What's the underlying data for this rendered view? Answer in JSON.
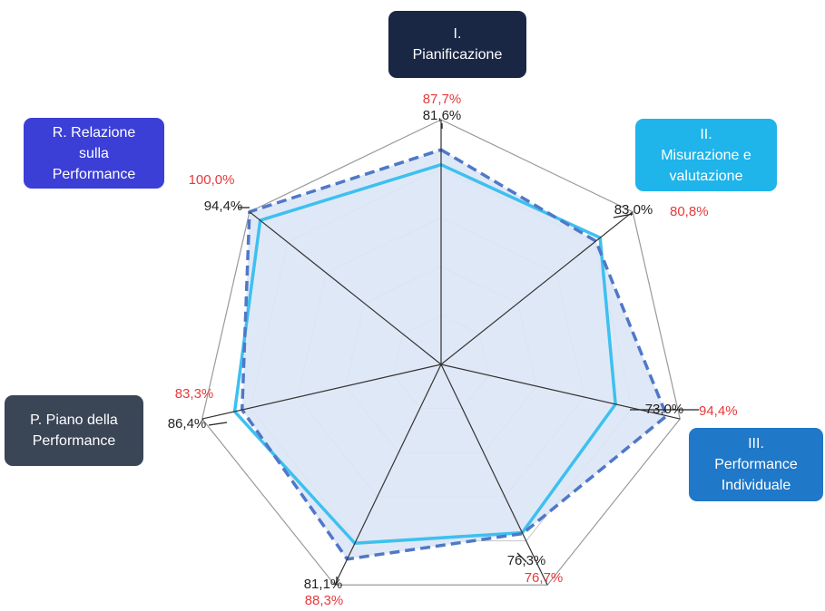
{
  "chart_data": {
    "type": "radar",
    "categories": [
      "I. Pianificazione",
      "II. Misurazione e valutazione",
      "III. Performance Individuale",
      "",
      "",
      "P. Piano della Performance",
      "R. Relazione sulla Performance"
    ],
    "series": [
      {
        "values": [
          81.6,
          83.0,
          73.0,
          76.3,
          81.1,
          86.4,
          94.4
        ],
        "labels": [
          "81,6%",
          "83,0%",
          "73,0%",
          "76,3%",
          "81,1%",
          "86,4%",
          "94,4%"
        ]
      },
      {
        "values": [
          87.7,
          80.8,
          94.4,
          76.7,
          88.3,
          83.3,
          100.0
        ],
        "labels": [
          "87,7%",
          "80,8%",
          "94,4%",
          "76,7%",
          "88,3%",
          "83,3%",
          "100,0%"
        ]
      }
    ],
    "rlim": [
      0,
      100
    ],
    "grid": true
  },
  "callouts": [
    {
      "id": "I",
      "lines": [
        "I.",
        "Pianificazione"
      ],
      "color": "#1a2744"
    },
    {
      "id": "II",
      "lines": [
        "II.",
        "Misurazione e",
        "valutazione"
      ],
      "color": "#1fb4ea"
    },
    {
      "id": "III",
      "lines": [
        "III.",
        "Performance",
        "Individuale"
      ],
      "color": "#1f78c8"
    },
    {
      "id": "P",
      "lines": [
        "P. Piano della",
        "Performance"
      ],
      "color": "#3a4556"
    },
    {
      "id": "R",
      "lines": [
        "R. Relazione",
        "sulla",
        "Performance"
      ],
      "color": "#3b3fd6"
    }
  ],
  "colors": {
    "series_1_line": "#3dc0f0",
    "series_2_line": "#4f78c8",
    "fill": "#dbe6f5",
    "grid": "#c8c8c8",
    "spokes": "#333333",
    "label_1": "#222222",
    "label_2": "#e8383b"
  }
}
